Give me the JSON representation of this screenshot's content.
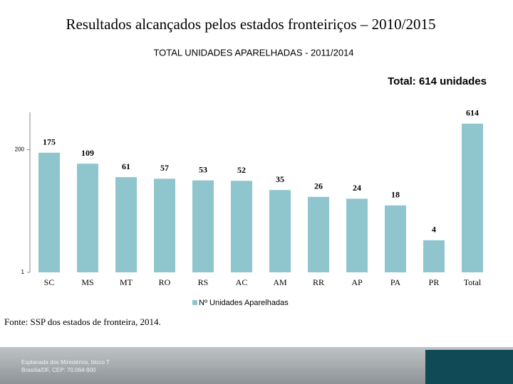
{
  "page_title": "Resultados alcançados pelos estados fronteiriços – 2010/2015",
  "source": "Fonte: SSP dos estados de fronteira, 2014.",
  "footer": {
    "lines": [
      "Esplanada dos Ministérios, bloco T",
      "Brasília/DF, CEP: 70.064-900"
    ]
  },
  "chart_data": {
    "type": "bar",
    "title": "TOTAL UNIDADES APARELHADAS - 2011/2014",
    "annotation": "Total:  614 unidades",
    "categories": [
      "SC",
      "MS",
      "MT",
      "RO",
      "RS",
      "AC",
      "AM",
      "RR",
      "AP",
      "PA",
      "PR",
      "Total"
    ],
    "series": [
      {
        "name": "Nº Unidades Aparelhadas",
        "color": "#8fc6cd",
        "values": [
          175,
          109,
          61,
          57,
          53,
          52,
          35,
          26,
          24,
          18,
          4,
          614
        ]
      }
    ],
    "log_scale": true,
    "ylim": [
      1,
      1000
    ],
    "yticks": [
      1,
      200
    ],
    "legend": "bottom"
  }
}
